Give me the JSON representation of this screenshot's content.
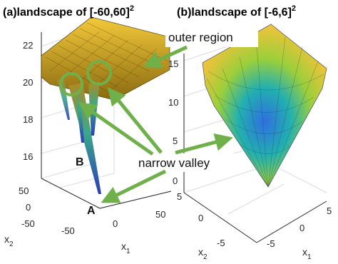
{
  "chart_data": [
    {
      "type": "surface",
      "title": "(a)landscape of [-60,60]",
      "title_superscript": "2",
      "xlabel": "x",
      "xlabel_sub": "1",
      "ylabel": "x",
      "ylabel_sub": "2",
      "x_ticks": [
        "-50",
        "0",
        "50"
      ],
      "y_ticks": [
        "50",
        "0",
        "-50"
      ],
      "z_ticks": [
        "22",
        "20",
        "18",
        "16"
      ],
      "xlim": [
        -60,
        60
      ],
      "ylim": [
        -60,
        60
      ],
      "zlim": [
        15,
        23
      ],
      "grid": true,
      "colormap": "parula",
      "markers": [
        "A",
        "B"
      ]
    },
    {
      "type": "surface",
      "title": "(b)landscape of [-6,6]",
      "title_superscript": "2",
      "xlabel": "x",
      "xlabel_sub": "1",
      "ylabel": "x",
      "ylabel_sub": "2",
      "x_ticks": [
        "-5",
        "0",
        "5"
      ],
      "y_ticks": [
        "5",
        "0",
        "-5"
      ],
      "z_ticks": [
        "15",
        "10",
        "5",
        "0"
      ],
      "xlim": [
        -6,
        6
      ],
      "ylim": [
        -6,
        6
      ],
      "zlim": [
        0,
        17
      ],
      "grid": true,
      "colormap": "parula"
    }
  ],
  "annotations": {
    "outer_region": "outer region",
    "narrow_valley": "narrow valley",
    "arrow_color": "#6fb04a"
  }
}
